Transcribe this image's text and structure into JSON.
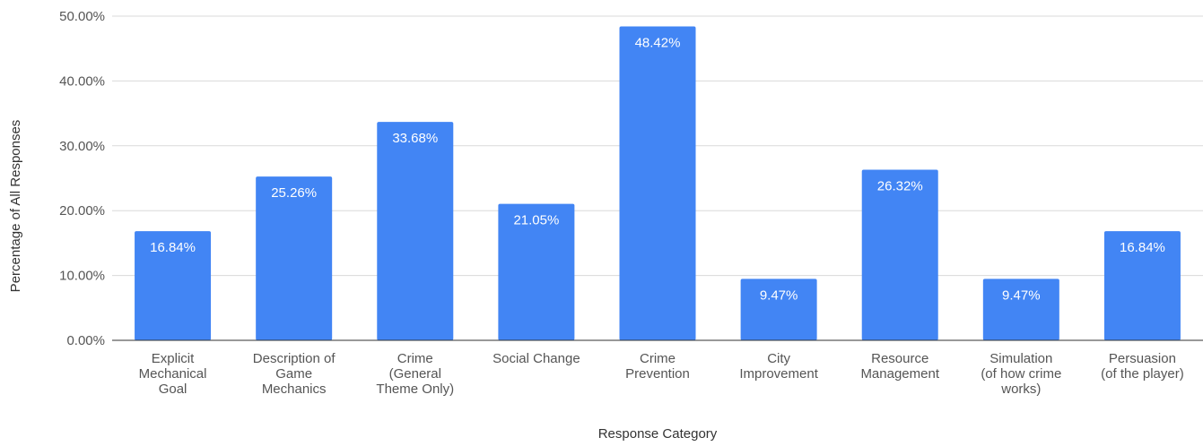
{
  "chart_data": {
    "type": "bar",
    "title": "",
    "xlabel": "Response Category",
    "ylabel": "Percentage of All Responses",
    "ylim": [
      0,
      50
    ],
    "yticks": [
      "0.00%",
      "10.00%",
      "20.00%",
      "30.00%",
      "40.00%",
      "50.00%"
    ],
    "grid": true,
    "legend": "none",
    "bar_color": "#4285F4",
    "categories": [
      [
        "Explicit",
        "Mechanical",
        "Goal"
      ],
      [
        "Description of",
        "Game",
        "Mechanics"
      ],
      [
        "Crime",
        "(General",
        "Theme Only)"
      ],
      [
        "Social Change"
      ],
      [
        "Crime",
        "Prevention"
      ],
      [
        "City",
        "Improvement"
      ],
      [
        "Resource",
        "Management"
      ],
      [
        "Simulation",
        "(of how crime",
        "works)"
      ],
      [
        "Persuasion",
        "(of the player)"
      ]
    ],
    "values": [
      16.84,
      25.26,
      33.68,
      21.05,
      48.42,
      9.47,
      26.32,
      9.47,
      16.84
    ],
    "data_labels": [
      "16.84%",
      "25.26%",
      "33.68%",
      "21.05%",
      "48.42%",
      "9.47%",
      "26.32%",
      "9.47%",
      "16.84%"
    ]
  }
}
